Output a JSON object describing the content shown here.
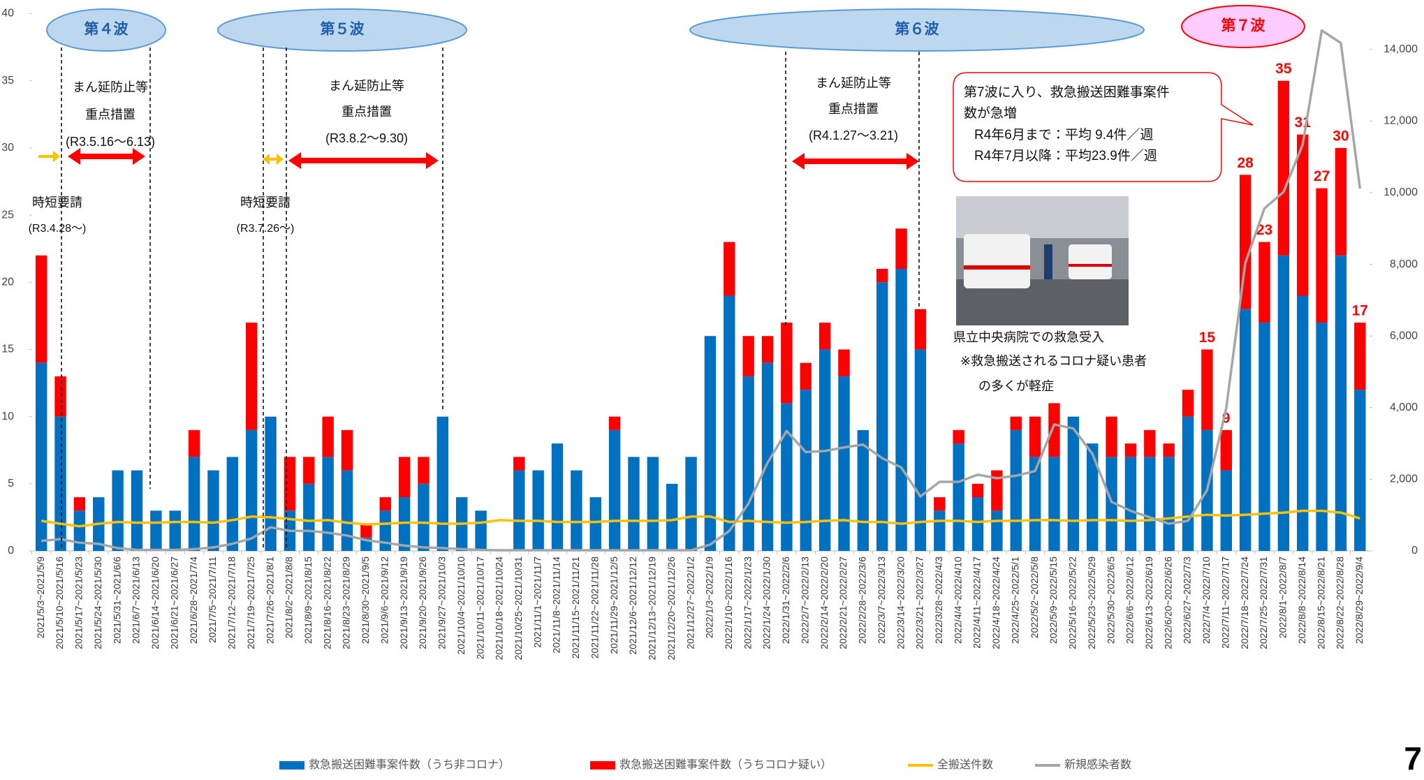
{
  "chart_data": {
    "type": "bar",
    "categories": [
      "2021/5/3~2021/5/9",
      "2021/5/10~2021/5/16",
      "2021/5/17~2021/5/23",
      "2021/5/24~2021/5/30",
      "2021/5/31~2021/6/6",
      "2021/6/7~2021/6/13",
      "2021/6/14~2021/6/20",
      "2021/6/21~2021/6/27",
      "2021/6/28~2021/7/4",
      "2021/7/5~2021/7/11",
      "2021/7/12~2021/7/18",
      "2021/7/19~2021/7/25",
      "2021/7/26~2021/8/1",
      "2021/8/2~2021/8/8",
      "2021/8/9~2021/8/15",
      "2021/8/16~2021/8/22",
      "2021/8/23~2021/8/29",
      "2021/8/30~2021/9/5",
      "2021/9/6~2021/9/12",
      "2021/9/13~2021/9/19",
      "2021/9/20~2021/9/26",
      "2021/9/27~2021/10/3",
      "2021/10/4~2021/10/10",
      "2021/10/11~2021/10/17",
      "2021/10/18~2021/10/24",
      "2021/10/25~2021/10/31",
      "2021/11/1~2021/11/7",
      "2021/11/8~2021/11/14",
      "2021/11/15~2021/11/21",
      "2021/11/22~2021/11/28",
      "2021/11/29~2021/12/5",
      "2021/12/6~2021/12/12",
      "2021/12/13~2021/12/19",
      "2021/12/20~2021/12/26",
      "2021/12/27~2022/1/2",
      "2022/1/3~2022/1/9",
      "2022/1/10~2022/1/16",
      "2022/1/17~2022/1/23",
      "2022/1/24~2022/1/30",
      "2022/1/31~2022/2/6",
      "2022/2/7~2022/2/13",
      "2022/2/14~2022/2/20",
      "2022/2/21~2022/2/27",
      "2022/2/28~2022/3/6",
      "2022/3/7~2022/3/13",
      "2022/3/14~2022/3/20",
      "2022/3/21~2022/3/27",
      "2022/3/28~2022/4/3",
      "2022/4/4~2022/4/10",
      "2022/4/11~2022/4/17",
      "2022/4/18~2022/4/24",
      "2022/4/25~2022/5/1",
      "2022/5/2~2022/5/8",
      "2022/5/9~2022/5/15",
      "2022/5/16~2022/5/22",
      "2022/5/23~2022/5/29",
      "2022/5/30~2022/6/5",
      "2022/6/6~2022/6/12",
      "2022/6/13~2022/6/19",
      "2022/6/20~2022/6/26",
      "2022/6/27~2022/7/3",
      "2022/7/4~2022/7/10",
      "2022/7/11~2022/7/17",
      "2022/7/18~2022/7/24",
      "2022/7/25~2022/7/31",
      "2022/8/1~2022/8/7",
      "2022/8/8~2022/8/14",
      "2022/8/15~2022/8/21",
      "2022/8/22~2022/8/28",
      "2022/8/29~2022/9/4"
    ],
    "series": [
      {
        "name": "救急搬送困難事案件数（うち非コロナ）",
        "color": "#0070c0",
        "type": "bar",
        "values": [
          14,
          10,
          3,
          4,
          6,
          6,
          3,
          3,
          7,
          6,
          7,
          9,
          10,
          3,
          5,
          7,
          6,
          1,
          3,
          4,
          5,
          10,
          4,
          3,
          0,
          6,
          6,
          8,
          6,
          4,
          9,
          7,
          7,
          5,
          7,
          16,
          19,
          13,
          14,
          11,
          12,
          15,
          13,
          9,
          20,
          21,
          15,
          3,
          8,
          4,
          3,
          9,
          7,
          7,
          10,
          8,
          7,
          7,
          7,
          7,
          10,
          9,
          6,
          18,
          17,
          22,
          19,
          17,
          22,
          12
        ]
      },
      {
        "name": "救急搬送困難事案件数（うちコロナ疑い）",
        "color": "#ff0000",
        "type": "bar",
        "values": [
          8,
          3,
          1,
          0,
          0,
          0,
          0,
          0,
          2,
          0,
          0,
          8,
          0,
          4,
          2,
          3,
          3,
          1,
          1,
          3,
          2,
          0,
          0,
          0,
          0,
          1,
          0,
          0,
          0,
          0,
          1,
          0,
          0,
          0,
          0,
          0,
          4,
          3,
          2,
          6,
          2,
          2,
          2,
          0,
          1,
          3,
          3,
          1,
          1,
          1,
          3,
          1,
          3,
          4,
          0,
          0,
          3,
          1,
          2,
          1,
          2,
          6,
          3,
          10,
          6,
          13,
          12,
          10,
          8,
          5
        ]
      },
      {
        "name": "全搬送件数",
        "color": "#ffc000",
        "type": "line",
        "axis": "y2",
        "values": [
          840,
          760,
          690,
          760,
          810,
          790,
          790,
          810,
          810,
          790,
          860,
          960,
          940,
          890,
          840,
          860,
          790,
          740,
          760,
          790,
          790,
          760,
          760,
          790,
          860,
          840,
          840,
          810,
          810,
          810,
          840,
          840,
          840,
          860,
          960,
          960,
          810,
          840,
          810,
          790,
          810,
          840,
          860,
          810,
          810,
          760,
          810,
          840,
          840,
          810,
          840,
          840,
          860,
          860,
          840,
          860,
          860,
          840,
          860,
          910,
          960,
          1010,
          990,
          1010,
          1040,
          1070,
          1120,
          1120,
          1070,
          910
        ]
      },
      {
        "name": "新規感染者数",
        "color": "#a6a6a6",
        "type": "line",
        "axis": "y2",
        "values": [
          280,
          330,
          230,
          200,
          80,
          30,
          30,
          30,
          50,
          100,
          200,
          350,
          660,
          560,
          560,
          510,
          430,
          300,
          230,
          150,
          100,
          80,
          50,
          30,
          20,
          20,
          20,
          20,
          20,
          20,
          20,
          20,
          20,
          20,
          20,
          180,
          560,
          1320,
          2460,
          3350,
          2760,
          2790,
          2890,
          2970,
          2590,
          2330,
          1520,
          1930,
          1930,
          2130,
          2030,
          2100,
          2230,
          3530,
          3420,
          2710,
          1370,
          1120,
          940,
          760,
          840,
          1700,
          3980,
          8040,
          9560,
          10020,
          11340,
          14530,
          14180,
          10120
        ]
      }
    ],
    "totals": [
      null,
      null,
      null,
      null,
      null,
      null,
      null,
      null,
      null,
      null,
      null,
      null,
      null,
      null,
      null,
      null,
      null,
      null,
      null,
      null,
      null,
      null,
      null,
      null,
      null,
      null,
      null,
      null,
      null,
      null,
      null,
      null,
      null,
      null,
      null,
      null,
      null,
      null,
      null,
      null,
      null,
      null,
      null,
      null,
      null,
      null,
      null,
      null,
      null,
      null,
      null,
      null,
      null,
      null,
      null,
      null,
      null,
      null,
      null,
      null,
      null,
      15,
      9,
      28,
      23,
      35,
      31,
      27,
      30,
      17
    ],
    "ylim": [
      0,
      40
    ],
    "yticks": [
      0,
      5,
      10,
      15,
      20,
      25,
      30,
      35,
      40
    ],
    "y2lim": [
      0,
      15000
    ],
    "y2ticks": [
      0,
      {
        "value": 2000,
        "label": "2,000"
      },
      {
        "value": 4000,
        "label": "4,000"
      },
      {
        "value": 6000,
        "label": "6,000"
      },
      {
        "value": 8000,
        "label": "8,000"
      },
      {
        "value": 10000,
        "label": "10,000"
      },
      {
        "value": 12000,
        "label": "12,000"
      },
      {
        "value": 14000,
        "label": "14,000"
      }
    ],
    "grid": false,
    "legend": "bottom",
    "annotations": {
      "waves": [
        "第４波",
        "第５波",
        "第６波",
        "第７波"
      ],
      "measures": [
        [
          "まん延防止等",
          "重点措置",
          "(R3.5.16～6.13)"
        ],
        [
          "まん延防止等",
          "重点措置",
          "(R3.8.2～9.30)"
        ],
        [
          "まん延防止等",
          "重点措置",
          "(R4.1.27～3.21)"
        ]
      ],
      "requests": [
        [
          "時短要請",
          "(R3.4.28～)"
        ],
        [
          "時短要請",
          "(R3.7.26～)"
        ]
      ],
      "callout": [
        "第7波に入り、救急搬送困難事案件",
        "数が急増",
        "R4年6月まで：平均 9.4件／週",
        "R4年7月以降：平均23.9件／週"
      ],
      "photo_caption": [
        "県立中央病院での救急受入",
        "※救急搬送されるコロナ疑い患者",
        "の多くが軽症"
      ]
    }
  },
  "page_number": "7"
}
